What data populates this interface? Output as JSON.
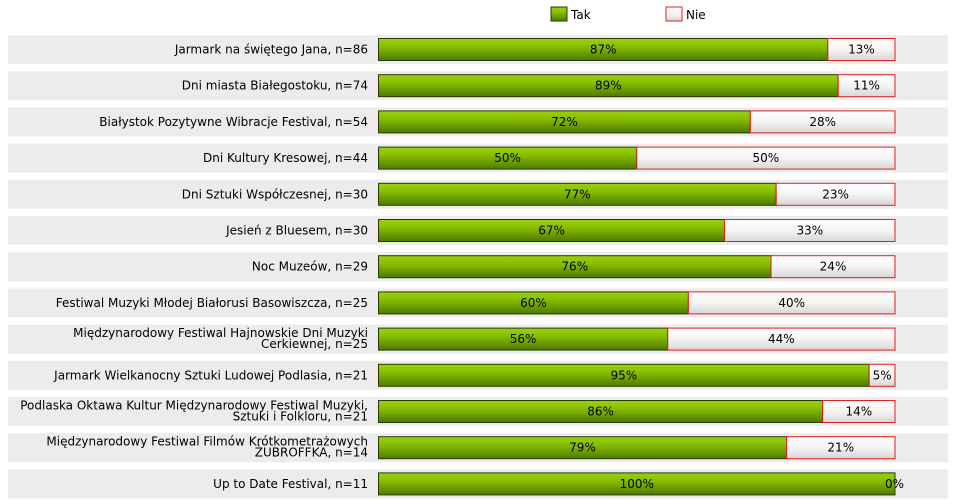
{
  "chart_data": {
    "type": "bar",
    "orientation": "horizontal",
    "stacked": true,
    "percent": true,
    "categories": [
      [
        "Jarmark na świętego Jana, n=86"
      ],
      [
        "Dni miasta Białegostoku, n=74"
      ],
      [
        "Białystok Pozytywne Wibracje Festival, n=54"
      ],
      [
        "Dni Kultury Kresowej, n=44"
      ],
      [
        "Dni Sztuki Współczesnej, n=30"
      ],
      [
        "Jesień z Bluesem, n=30"
      ],
      [
        "Noc Muzeów, n=29"
      ],
      [
        "Festiwal Muzyki Młodej Białorusi Basowiszcza, n=25"
      ],
      [
        "Międzynarodowy Festiwal Hajnowskie Dni Muzyki",
        "Cerkiewnej, n=25"
      ],
      [
        "Jarmark Wielkanocny Sztuki Ludowej Podlasia, n=21"
      ],
      [
        "Podlaska Oktawa Kultur Międzynarodowy Festiwal Muzyki,",
        "Sztuki i Folkloru, n=21"
      ],
      [
        "Międzynarodowy Festiwal Filmów Krótkometrażowych",
        "ŻUBROFFKA, n=14"
      ],
      [
        "Up to Date Festival, n=11"
      ]
    ],
    "series": [
      {
        "name": "Tak",
        "values": [
          87,
          89,
          72,
          50,
          77,
          67,
          76,
          60,
          56,
          95,
          86,
          79,
          100
        ],
        "labels": [
          "87%",
          "89%",
          "72%",
          "50%",
          "77%",
          "67%",
          "76%",
          "60%",
          "56%",
          "95%",
          "86%",
          "79%",
          "100%"
        ]
      },
      {
        "name": "Nie",
        "values": [
          13,
          11,
          28,
          50,
          23,
          33,
          24,
          40,
          44,
          5,
          14,
          21,
          0
        ],
        "labels": [
          "13%",
          "11%",
          "28%",
          "50%",
          "23%",
          "33%",
          "24%",
          "40%",
          "44%",
          "5%",
          "14%",
          "21%",
          "0%"
        ]
      }
    ],
    "legend": "top-center",
    "xlim": [
      0,
      100
    ],
    "colors": {
      "tak_fill": "#6aa000",
      "tak_light": "#a8dc20",
      "tak_border": "#2a3a00",
      "nie_fill": "#ffffff",
      "nie_shade": "#dcdcdc",
      "nie_border": "#e02020",
      "row_band": "#ececec"
    }
  }
}
